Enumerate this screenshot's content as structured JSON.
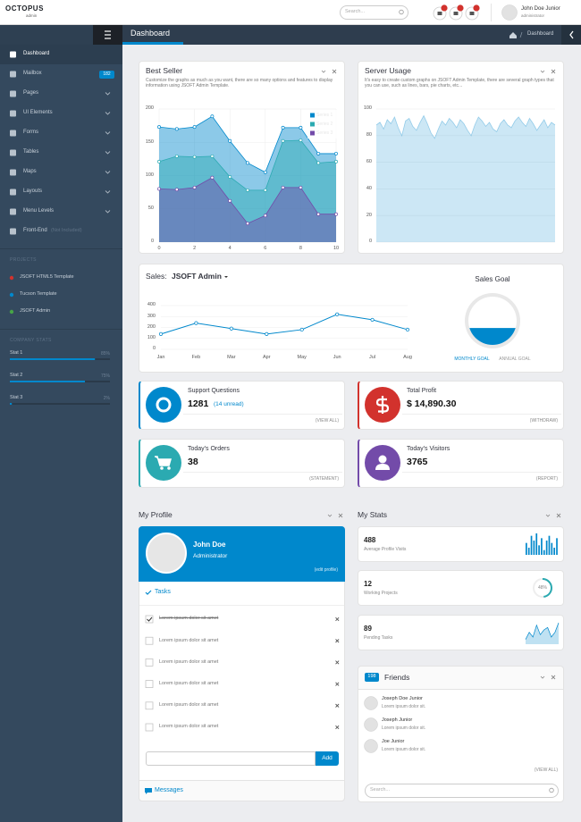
{
  "header": {
    "logo": "OCTOPUS",
    "logo_sub": "admin",
    "search_placeholder": "Search...",
    "badges": [
      3,
      4,
      5
    ],
    "user_name": "John Doe Junior",
    "user_role": "administrator"
  },
  "sidebar": {
    "menu": [
      {
        "label": "Dashboard"
      },
      {
        "label": "Mailbox",
        "badge": 182
      },
      {
        "label": "Pages",
        "submenu": true
      },
      {
        "label": "UI Elements",
        "submenu": true
      },
      {
        "label": "Forms",
        "submenu": true
      },
      {
        "label": "Tables",
        "submenu": true
      },
      {
        "label": "Maps",
        "submenu": true
      },
      {
        "label": "Layouts",
        "submenu": true
      },
      {
        "label": "Menu Levels",
        "submenu": true
      },
      {
        "label": "Front-End",
        "note": "(Not Included)"
      }
    ],
    "projects_title": "PROJECTS",
    "projects": [
      {
        "label": "JSOFT HTML5 Template",
        "color": "#d2322d"
      },
      {
        "label": "Tucson Template",
        "color": "#0088cc"
      },
      {
        "label": "JSOFT Admin",
        "color": "#47a447"
      }
    ],
    "stats_title": "COMPANY STATS",
    "stats": [
      {
        "name": "Stat 1",
        "value": 85,
        "label": "85%"
      },
      {
        "name": "Stat 2",
        "value": 75,
        "label": "75%"
      },
      {
        "name": "Stat 3",
        "value": 2,
        "label": "2%"
      }
    ]
  },
  "page_header": {
    "title": "Dashboard",
    "breadcrumb": "Dashboard"
  },
  "chart_data": [
    {
      "type": "area",
      "title": "Best Seller",
      "subtitle": "Customize the graphs as much as you want, there are so many options and features to display information using JSOFT Admin Template.",
      "x": [
        0,
        1,
        2,
        3,
        4,
        5,
        6,
        7,
        8,
        9,
        10
      ],
      "xlim": [
        0,
        10
      ],
      "xticks": [
        0,
        2,
        4,
        6,
        8,
        10
      ],
      "ylim": [
        0,
        200
      ],
      "yticks": [
        0,
        50,
        100,
        150,
        200
      ],
      "grid": true,
      "legend": "top-right",
      "series": [
        {
          "name": "Series 1",
          "color": "#0088cc",
          "values": [
            173,
            170,
            173,
            189,
            152,
            119,
            105,
            172,
            172,
            133,
            133
          ]
        },
        {
          "name": "Series 2",
          "color": "#2baab1",
          "values": [
            121,
            129,
            128,
            129,
            98,
            78,
            78,
            152,
            153,
            119,
            121
          ]
        },
        {
          "name": "Series 3",
          "color": "#734ba9",
          "values": [
            80,
            79,
            82,
            97,
            62,
            28,
            40,
            82,
            82,
            42,
            42
          ]
        }
      ]
    },
    {
      "type": "area",
      "title": "Server Usage",
      "subtitle": "It's easy to create custom graphs on JSOFT Admin Template, there are several graph types that you can use, such as lines, bars, pie charts, etc...",
      "values": [
        88,
        90,
        85,
        92,
        89,
        94,
        86,
        80,
        91,
        93,
        87,
        84,
        90,
        95,
        89,
        82,
        78,
        85,
        91,
        88,
        93,
        90,
        86,
        92,
        89,
        84,
        80,
        88,
        94,
        91,
        87,
        90,
        85,
        83,
        89,
        92,
        88,
        86,
        91,
        94,
        90,
        87,
        93,
        89,
        84,
        88,
        92,
        86,
        90,
        88
      ],
      "color": "#0088cc",
      "ylim": [
        0,
        100
      ],
      "yticks": [
        0,
        20,
        40,
        60,
        80,
        100
      ],
      "grid": true
    },
    {
      "type": "line",
      "title": "Sales:",
      "selector": "JSOFT Admin",
      "categories": [
        "Jan",
        "Feb",
        "Mar",
        "Apr",
        "May",
        "Jun",
        "Jul",
        "Aug"
      ],
      "values": [
        140,
        240,
        190,
        140,
        180,
        320,
        270,
        180
      ],
      "color": "#0088cc",
      "ylim": [
        0,
        400
      ],
      "yticks": [
        0,
        100,
        200,
        300,
        400
      ],
      "grid": true
    },
    {
      "type": "gauge",
      "title": "Sales Goal",
      "value": 35,
      "value_label": "35%",
      "color": "#0088cc",
      "tabs": [
        "MONTHLY GOAL",
        "ANNUAL GOAL"
      ]
    }
  ],
  "widgets": [
    {
      "title": "Support Questions",
      "amount": "1281",
      "note": "(14 unread)",
      "action": "(VIEW ALL)",
      "color": "#0088cc"
    },
    {
      "title": "Total Profit",
      "amount": "$ 14,890.30",
      "action": "(WITHDRAW)",
      "color": "#d2322d"
    },
    {
      "title": "Today's Orders",
      "amount": "38",
      "action": "(STATEMENT)",
      "color": "#2baab1"
    },
    {
      "title": "Today's Visitors",
      "amount": "3765",
      "action": "(REPORT)",
      "color": "#734ba9"
    }
  ],
  "profile": {
    "title": "My Profile",
    "name": "John Doe",
    "role": "Administrator",
    "edit": "(edit profile)",
    "tasks_title": "Tasks",
    "tasks": [
      {
        "text": "Lorem ipsum dolor sit amet",
        "done": true
      },
      {
        "text": "Lorem ipsum dolor sit amet",
        "done": false
      },
      {
        "text": "Lorem ipsum dolor sit amet",
        "done": false
      },
      {
        "text": "Lorem ipsum dolor sit amet",
        "done": false
      },
      {
        "text": "Lorem ipsum dolor sit amet",
        "done": false
      },
      {
        "text": "Lorem ipsum dolor sit amet",
        "done": false
      }
    ],
    "add": "Add",
    "messages": "Messages"
  },
  "my_stats": {
    "title": "My Stats",
    "items": [
      {
        "value": 488,
        "label": "Average Profile Visits",
        "spark": [
          5,
          3,
          8,
          6,
          9,
          4,
          7,
          2,
          6,
          8,
          5,
          3,
          7
        ]
      },
      {
        "value": 12,
        "label": "Working Projects",
        "percent": 48,
        "percent_label": "48%"
      },
      {
        "value": 89,
        "label": "Pending Tasks",
        "spark": [
          2,
          5,
          3,
          8,
          4,
          6,
          7,
          3,
          5,
          9
        ]
      }
    ]
  },
  "friends": {
    "count": 198,
    "title": "Friends",
    "people": [
      {
        "name": "Joseph Doe Junior",
        "text": "Lorem ipsum dolor sit."
      },
      {
        "name": "Joseph Junior",
        "text": "Lorem ipsum dolor sit."
      },
      {
        "name": "Joe Junior",
        "text": "Lorem ipsum dolor sit."
      }
    ],
    "view_all": "(VIEW ALL)",
    "search_placeholder": "Search..."
  }
}
